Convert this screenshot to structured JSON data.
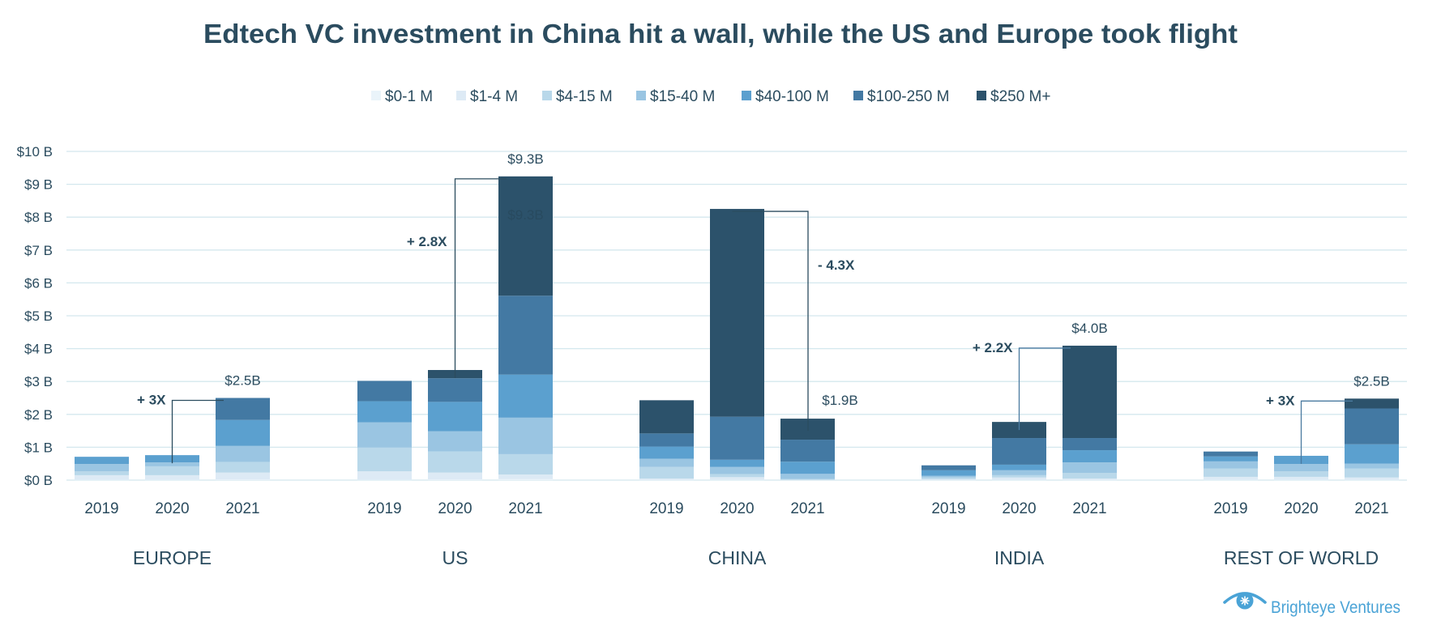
{
  "chart_data": {
    "type": "bar",
    "stacked": true,
    "title": "Edtech VC investment in China hit a wall, while the US and Europe took flight",
    "ylabel": "",
    "xlabel": "",
    "ylim": [
      0,
      10
    ],
    "y_unit": "B",
    "y_ticks": [
      "$0 B",
      "$1 B",
      "$2 B",
      "$3 B",
      "$4 B",
      "$5 B",
      "$6 B",
      "$7 B",
      "$8 B",
      "$9 B",
      "$10 B"
    ],
    "grid": true,
    "legend_position": "top-center",
    "legend": [
      "$0-1 M",
      "$1-4 M",
      "$4-15 M",
      "$15-40 M",
      "$40-100 M",
      "$100-250 M",
      "$250 M+"
    ],
    "colors": [
      "#eaf4fa",
      "#ddeaf5",
      "#b9d8ea",
      "#9ac5e2",
      "#5ba0cf",
      "#4379a3",
      "#2c526b"
    ],
    "years": [
      "2019",
      "2020",
      "2021"
    ],
    "groups": [
      {
        "name": "EUROPE",
        "bars": [
          {
            "year": "2019",
            "values": [
              0.01,
              0.14,
              0.12,
              0.22,
              0.22,
              0,
              0
            ]
          },
          {
            "year": "2020",
            "values": [
              0.01,
              0.14,
              0.27,
              0.12,
              0.22,
              0,
              0
            ]
          },
          {
            "year": "2021",
            "values": [
              0.02,
              0.21,
              0.32,
              0.49,
              0.79,
              0.67,
              0
            ]
          }
        ],
        "total_label": "$2.5B",
        "multiplier": {
          "label": "+ 3X",
          "from": 1,
          "to": 2
        }
      },
      {
        "name": "US",
        "bars": [
          {
            "year": "2019",
            "values": [
              0.01,
              0.26,
              0.72,
              0.77,
              0.64,
              0.62,
              0
            ]
          },
          {
            "year": "2020",
            "values": [
              0.02,
              0.21,
              0.64,
              0.62,
              0.89,
              0.72,
              0.25
            ]
          },
          {
            "year": "2021",
            "values": [
              0.03,
              0.14,
              0.62,
              1.11,
              1.31,
              2.4,
              3.63
            ]
          }
        ],
        "total_label": "$9.3B",
        "inner_label": "$9.3B",
        "multiplier": {
          "label": "+ 2.8X",
          "from": 1,
          "to": 2
        }
      },
      {
        "name": "CHINA",
        "bars": [
          {
            "year": "2019",
            "values": [
              0.01,
              0.04,
              0.35,
              0.25,
              0.37,
              0.4,
              1.01
            ]
          },
          {
            "year": "2020",
            "values": [
              0.01,
              0.08,
              0.09,
              0.22,
              0.22,
              1.31,
              6.32
            ]
          },
          {
            "year": "2021",
            "values": [
              0,
              0.01,
              0.02,
              0.16,
              0.37,
              0.67,
              0.64
            ]
          }
        ],
        "total_label": "$1.9B",
        "multiplier": {
          "label": "- 4.3X",
          "from": 1,
          "to": 2
        }
      },
      {
        "name": "INDIA",
        "bars": [
          {
            "year": "2019",
            "values": [
              0.01,
              0.02,
              0.05,
              0.05,
              0.17,
              0.15,
              0
            ]
          },
          {
            "year": "2020",
            "values": [
              0.01,
              0.07,
              0.07,
              0.15,
              0.17,
              0.81,
              0.49
            ]
          },
          {
            "year": "2021",
            "values": [
              0.01,
              0.04,
              0.17,
              0.32,
              0.37,
              0.37,
              2.81
            ]
          }
        ],
        "total_label": "$4.0B",
        "multiplier": {
          "label": "+ 2.2X",
          "from": 1,
          "to": 2
        }
      },
      {
        "name": "REST OF WORLD",
        "bars": [
          {
            "year": "2019",
            "values": [
              0.01,
              0.09,
              0.25,
              0.22,
              0.15,
              0.15,
              0
            ]
          },
          {
            "year": "2020",
            "values": [
              0.01,
              0.09,
              0.17,
              0.22,
              0.25,
              0,
              0
            ]
          },
          {
            "year": "2021",
            "values": [
              0.01,
              0.07,
              0.27,
              0.15,
              0.59,
              1.09,
              0.3
            ]
          }
        ],
        "total_label": "$2.5B",
        "multiplier": {
          "label": "+ 3X",
          "from": 1,
          "to": 2
        }
      }
    ]
  },
  "branding": {
    "logo_text": "Brighteye Ventures",
    "logo_icon": "eye-icon",
    "color": "#4aa3d6"
  }
}
